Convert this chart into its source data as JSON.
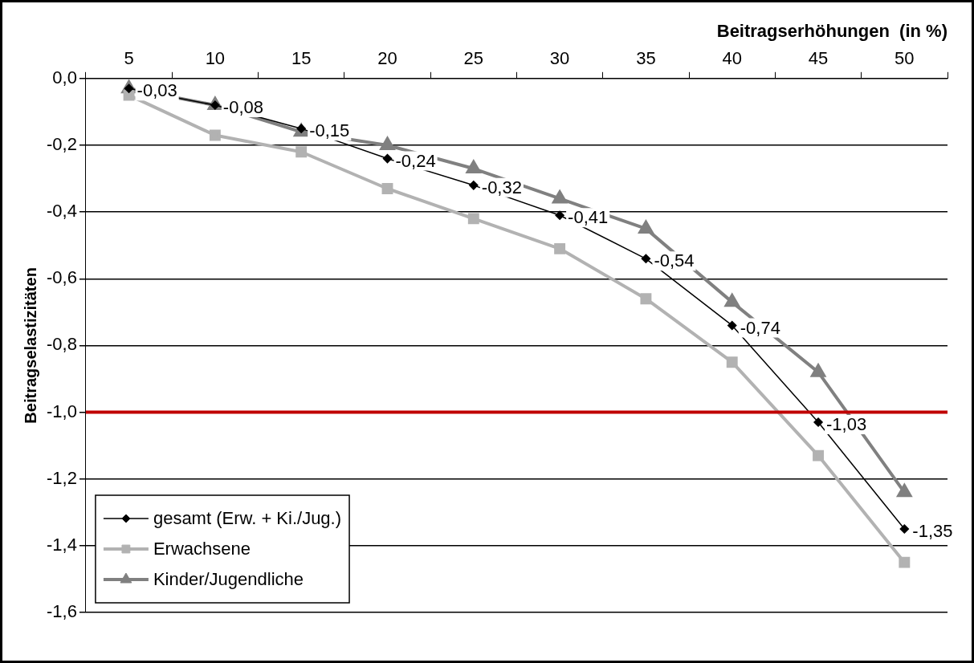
{
  "chart_data": {
    "type": "line",
    "xlabel": "Beitragserhöhungen  (in %)",
    "ylabel": "Beitragselastizitäten",
    "categories": [
      "5",
      "10",
      "15",
      "20",
      "25",
      "30",
      "35",
      "40",
      "45",
      "50"
    ],
    "series": [
      {
        "name": "gesamt (Erw. + Ki./Jug.)",
        "color": "#000000",
        "marker": "diamond",
        "values": [
          -0.03,
          -0.08,
          -0.15,
          -0.24,
          -0.32,
          -0.41,
          -0.54,
          -0.74,
          -1.03,
          -1.35
        ],
        "value_labels": [
          "-0,03",
          "-0,08",
          "-0,15",
          "-0,24",
          "-0,32",
          "-0,41",
          "-0,54",
          "-0,74",
          "-1,03",
          "-1,35"
        ]
      },
      {
        "name": "Erwachsene",
        "color": "#b2b2b2",
        "marker": "square",
        "values": [
          -0.05,
          -0.17,
          -0.22,
          -0.33,
          -0.42,
          -0.51,
          -0.66,
          -0.85,
          -1.13,
          -1.45
        ]
      },
      {
        "name": "Kinder/Jugendliche",
        "color": "#808080",
        "marker": "triangle",
        "values": [
          -0.03,
          -0.08,
          -0.16,
          -0.2,
          -0.27,
          -0.36,
          -0.45,
          -0.67,
          -0.88,
          -1.24
        ]
      }
    ],
    "ylim": [
      -1.6,
      0
    ],
    "yticks": [
      {
        "value": -1.6,
        "label": "-1,6"
      },
      {
        "value": -1.4,
        "label": "-1,4"
      },
      {
        "value": -1.2,
        "label": "-1,2"
      },
      {
        "value": -1,
        "label": "-1,0"
      },
      {
        "value": -0.8,
        "label": "-0,8"
      },
      {
        "value": -0.6,
        "label": "-0,6"
      },
      {
        "value": -0.4,
        "label": "-0,4"
      },
      {
        "value": -0.2,
        "label": "-0,2"
      },
      {
        "value": 0,
        "label": "0,0"
      }
    ],
    "ref_lines": [
      {
        "axis": "y",
        "value": -1,
        "color": "#c00000"
      }
    ],
    "grid": "y",
    "legend": "bottom left"
  }
}
